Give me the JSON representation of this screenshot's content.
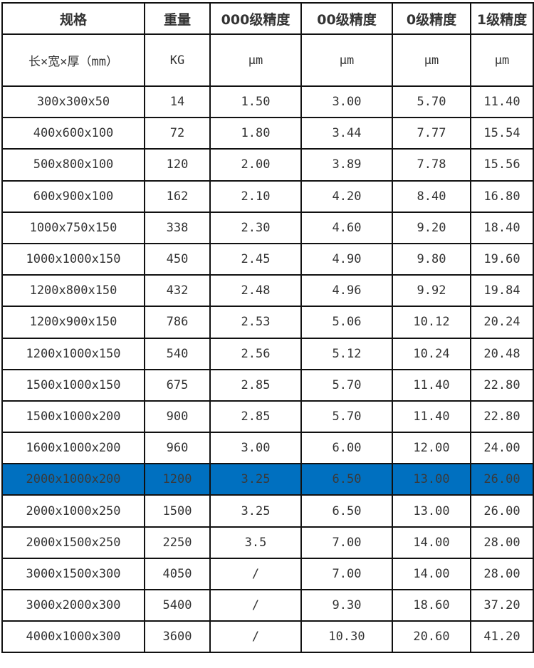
{
  "headers": [
    "规格",
    "重量",
    "000级精度",
    "00级精度",
    "0级精度",
    "1级精度"
  ],
  "units": [
    "长×宽×厚（mm）",
    "KG",
    "μm",
    "μm",
    "μm",
    "μm"
  ],
  "highlight_color": "#0070c0",
  "highlighted_row": 12,
  "rows": [
    [
      "300x300x50",
      "14",
      "1.50",
      "3.00",
      "5.70",
      "11.40"
    ],
    [
      "400x600x100",
      "72",
      "1.80",
      "3.44",
      "7.77",
      "15.54"
    ],
    [
      "500x800x100",
      "120",
      "2.00",
      "3.89",
      "7.78",
      "15.56"
    ],
    [
      "600x900x100",
      "162",
      "2.10",
      "4.20",
      "8.40",
      "16.80"
    ],
    [
      "1000x750x150",
      "338",
      "2.30",
      "4.60",
      "9.20",
      "18.40"
    ],
    [
      "1000x1000x150",
      "450",
      "2.45",
      "4.90",
      "9.80",
      "19.60"
    ],
    [
      "1200x800x150",
      "432",
      "2.48",
      "4.96",
      "9.92",
      "19.84"
    ],
    [
      "1200x900x150",
      "786",
      "2.53",
      "5.06",
      "10.12",
      "20.24"
    ],
    [
      "1200x1000x150",
      "540",
      "2.56",
      "5.12",
      "10.24",
      "20.48"
    ],
    [
      "1500x1000x150",
      "675",
      "2.85",
      "5.70",
      "11.40",
      "22.80"
    ],
    [
      "1500x1000x200",
      "900",
      "2.85",
      "5.70",
      "11.40",
      "22.80"
    ],
    [
      "1600x1000x200",
      "960",
      "3.00",
      "6.00",
      "12.00",
      "24.00"
    ],
    [
      "2000x1000x200",
      "1200",
      "3.25",
      "6.50",
      "13.00",
      "26.00"
    ],
    [
      "2000x1000x250",
      "1500",
      "3.25",
      "6.50",
      "13.00",
      "26.00"
    ],
    [
      "2000x1500x250",
      "2250",
      "3.5",
      "7.00",
      "14.00",
      "28.00"
    ],
    [
      "3000x1500x300",
      "4050",
      "/",
      "7.00",
      "14.00",
      "28.00"
    ],
    [
      "3000x2000x300",
      "5400",
      "/",
      "9.30",
      "18.60",
      "37.20"
    ],
    [
      "4000x1000x300",
      "3600",
      "/",
      "10.30",
      "20.60",
      "41.20"
    ]
  ]
}
